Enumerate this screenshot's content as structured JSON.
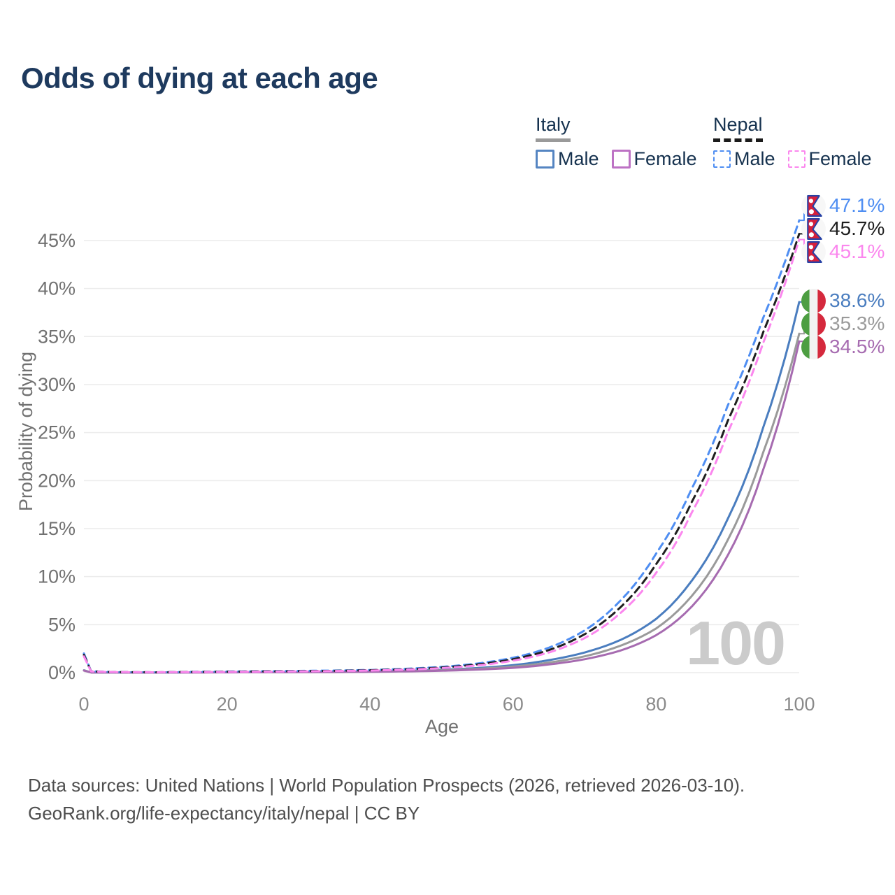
{
  "page": {
    "title": "Odds of dying at each age",
    "source_line1": "Data sources: United Nations | World Population Prospects (2026, retrieved 2026-03-10).",
    "source_line2": "GeoRank.org/life-expectancy/italy/nepal | CC BY"
  },
  "legend": {
    "groups": [
      {
        "country": "Italy",
        "line_style": "solid",
        "underline_color": "#9a9a9a",
        "items": [
          {
            "label": "Male",
            "color": "#5585c2"
          },
          {
            "label": "Female",
            "color": "#bd72c4"
          }
        ]
      },
      {
        "country": "Nepal",
        "line_style": "dashed",
        "underline_color": "#1b1b1b",
        "items": [
          {
            "label": "Male",
            "color": "#4f8ef2"
          },
          {
            "label": "Female",
            "color": "#fb87ee"
          }
        ]
      }
    ]
  },
  "chart_data": {
    "type": "line",
    "title": "Odds of dying at each age",
    "xlabel": "Age",
    "ylabel": "Probability of dying",
    "xlim": [
      0,
      100
    ],
    "ylim_percent": [
      0,
      49
    ],
    "grid": "horizontal",
    "legend_position": "top-right",
    "age_watermark": "100",
    "x_ticks": [
      {
        "label": "0",
        "value": 0
      },
      {
        "label": "20",
        "value": 20
      },
      {
        "label": "40",
        "value": 40
      },
      {
        "label": "60",
        "value": 60
      },
      {
        "label": "80",
        "value": 80
      },
      {
        "label": "100",
        "value": 100
      }
    ],
    "y_ticks": [
      {
        "label": "0%",
        "value": 0
      },
      {
        "label": "5%",
        "value": 5
      },
      {
        "label": "10%",
        "value": 10
      },
      {
        "label": "15%",
        "value": 15
      },
      {
        "label": "20%",
        "value": 20
      },
      {
        "label": "25%",
        "value": 25
      },
      {
        "label": "30%",
        "value": 30
      },
      {
        "label": "35%",
        "value": 35
      },
      {
        "label": "40%",
        "value": 40
      },
      {
        "label": "45%",
        "value": 45
      }
    ],
    "ages": [
      0,
      1,
      5,
      10,
      15,
      20,
      25,
      30,
      35,
      40,
      45,
      50,
      55,
      60,
      65,
      70,
      75,
      80,
      85,
      90,
      95,
      100
    ],
    "series": [
      {
        "id": "nepal-male",
        "country": "Nepal",
        "sex": "Male",
        "style": "dashed",
        "color": "#4f8ef2",
        "end_label": "47.1%",
        "end_value_percent": 47.1,
        "values_percent": [
          2.0,
          0.15,
          0.05,
          0.04,
          0.08,
          0.12,
          0.15,
          0.18,
          0.22,
          0.28,
          0.4,
          0.6,
          0.95,
          1.55,
          2.6,
          4.4,
          7.5,
          12.4,
          19.2,
          27.8,
          37.0,
          47.1
        ]
      },
      {
        "id": "nepal-combined",
        "country": "Nepal",
        "sex": "Both sexes",
        "style": "dashed",
        "color": "#1f1f1f",
        "end_label": "45.7%",
        "end_value_percent": 45.7,
        "values_percent": [
          1.85,
          0.14,
          0.05,
          0.04,
          0.07,
          0.1,
          0.13,
          0.16,
          0.19,
          0.25,
          0.35,
          0.53,
          0.85,
          1.4,
          2.35,
          4.0,
          6.8,
          11.3,
          17.8,
          26.2,
          35.5,
          45.7
        ]
      },
      {
        "id": "nepal-female",
        "country": "Nepal",
        "sex": "Female",
        "style": "dashed",
        "color": "#fb87ee",
        "end_label": "45.1%",
        "end_value_percent": 45.1,
        "values_percent": [
          1.7,
          0.13,
          0.05,
          0.04,
          0.06,
          0.08,
          0.1,
          0.13,
          0.17,
          0.22,
          0.31,
          0.47,
          0.75,
          1.25,
          2.1,
          3.6,
          6.2,
          10.4,
          16.7,
          25.0,
          34.4,
          45.1
        ]
      },
      {
        "id": "italy-male",
        "country": "Italy",
        "sex": "Male",
        "style": "solid",
        "color": "#4a7dbf",
        "end_label": "38.6%",
        "end_value_percent": 38.6,
        "values_percent": [
          0.25,
          0.02,
          0.01,
          0.01,
          0.03,
          0.05,
          0.06,
          0.07,
          0.09,
          0.12,
          0.19,
          0.3,
          0.48,
          0.78,
          1.3,
          2.1,
          3.4,
          5.6,
          9.6,
          16.0,
          25.6,
          38.6
        ]
      },
      {
        "id": "italy-combined",
        "country": "Italy",
        "sex": "Both sexes",
        "style": "solid",
        "color": "#9a9a9a",
        "end_label": "35.3%",
        "end_value_percent": 35.3,
        "values_percent": [
          0.23,
          0.02,
          0.01,
          0.01,
          0.02,
          0.04,
          0.05,
          0.06,
          0.08,
          0.1,
          0.16,
          0.25,
          0.4,
          0.63,
          1.05,
          1.7,
          2.8,
          4.6,
          8.0,
          13.8,
          23.0,
          35.3
        ]
      },
      {
        "id": "italy-female",
        "country": "Italy",
        "sex": "Female",
        "style": "solid",
        "color": "#a66bb0",
        "end_label": "34.5%",
        "end_value_percent": 34.5,
        "values_percent": [
          0.21,
          0.02,
          0.01,
          0.01,
          0.02,
          0.03,
          0.04,
          0.05,
          0.06,
          0.09,
          0.13,
          0.2,
          0.32,
          0.5,
          0.85,
          1.4,
          2.3,
          3.9,
          6.9,
          12.2,
          21.2,
          34.5
        ]
      }
    ]
  }
}
